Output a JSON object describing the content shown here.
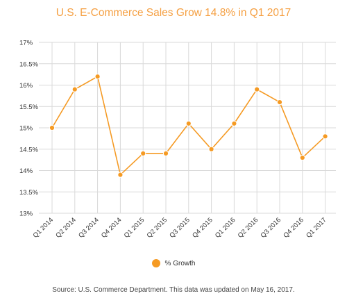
{
  "chart_data": {
    "type": "line",
    "title": "U.S. E-Commerce Sales Grow 14.8% in Q1 2017",
    "categories": [
      "Q1 2014",
      "Q2 2014",
      "Q3 2014",
      "Q4 2014",
      "Q1 2015",
      "Q2 2015",
      "Q3 2015",
      "Q4 2015",
      "Q1 2016",
      "Q2 2016",
      "Q3 2016",
      "Q4 2016",
      "Q1 2017"
    ],
    "series": [
      {
        "name": "% Growth",
        "values": [
          15.0,
          15.9,
          16.2,
          13.9,
          14.4,
          14.4,
          15.1,
          14.5,
          15.1,
          15.9,
          15.6,
          14.3,
          14.8
        ]
      }
    ],
    "ylim": [
      13,
      17
    ],
    "yticks": [
      13,
      13.5,
      14,
      14.5,
      15,
      15.5,
      16,
      16.5,
      17
    ],
    "ytick_labels": [
      "13%",
      "13.5%",
      "14%",
      "14.5%",
      "15%",
      "15.5%",
      "16%",
      "16.5%",
      "17%"
    ],
    "grid": true,
    "legend_position": "bottom",
    "source": "Source: U.S. Commerce Department. This data was updated on May 16, 2017.",
    "colors": {
      "series": "#f59a23",
      "grid": "#d9d9d9",
      "title": "#f5a043"
    }
  }
}
